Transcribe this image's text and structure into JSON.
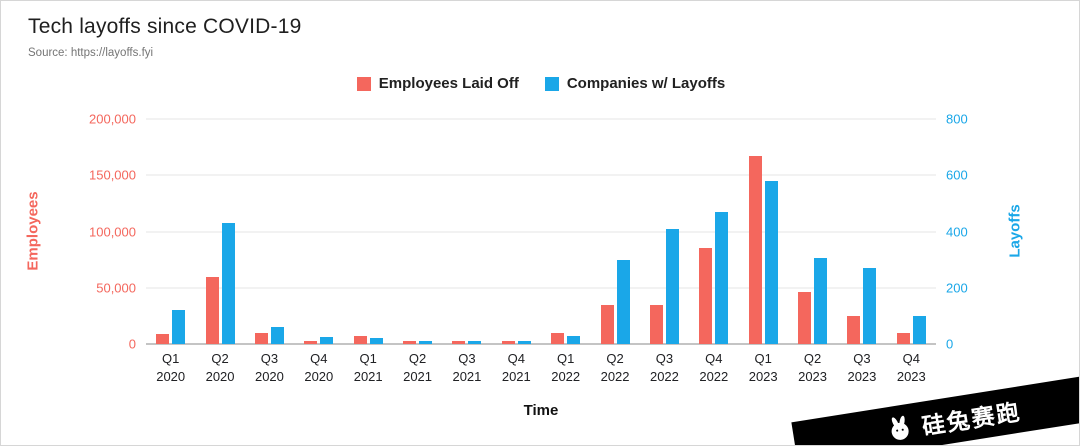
{
  "title": "Tech layoffs since COVID-19",
  "source": "Source: https://layoffs.fyi",
  "colors": {
    "red": "#f4675d",
    "blue": "#1aa7e8"
  },
  "legend": [
    {
      "label": "Employees Laid Off",
      "color": "#f4675d"
    },
    {
      "label": "Companies w/ Layoffs",
      "color": "#1aa7e8"
    }
  ],
  "watermark": {
    "text": "硅兔赛跑",
    "icon": "rabbit-logo-icon"
  },
  "chart_data": {
    "type": "bar",
    "title": "Tech layoffs since COVID-19",
    "xlabel": "Time",
    "grid": true,
    "legend_position": "top",
    "categories": [
      "Q1 2020",
      "Q2 2020",
      "Q3 2020",
      "Q4 2020",
      "Q1 2021",
      "Q2 2021",
      "Q3 2021",
      "Q4 2021",
      "Q1 2022",
      "Q2 2022",
      "Q3 2022",
      "Q4 2022",
      "Q1 2023",
      "Q2 2023",
      "Q3 2023",
      "Q4 2023"
    ],
    "series": [
      {
        "name": "Employees Laid Off",
        "axis": "left",
        "color": "#f4675d",
        "values": [
          9000,
          60000,
          10000,
          3000,
          7000,
          3000,
          2500,
          3000,
          9500,
          35000,
          35000,
          85000,
          167000,
          46000,
          25000,
          10000
        ]
      },
      {
        "name": "Companies w/ Layoffs",
        "axis": "right",
        "color": "#1aa7e8",
        "values": [
          120,
          430,
          60,
          25,
          20,
          10,
          10,
          10,
          30,
          300,
          410,
          470,
          580,
          305,
          270,
          100
        ]
      }
    ],
    "left_axis": {
      "label": "Employees",
      "color": "#f4675d",
      "max": 200000,
      "ticks": [
        "0",
        "50,000",
        "100,000",
        "150,000",
        "200,000"
      ]
    },
    "right_axis": {
      "label": "Layoffs",
      "color": "#1aa7e8",
      "max": 800,
      "ticks": [
        "0",
        "200",
        "400",
        "600",
        "800"
      ]
    }
  }
}
